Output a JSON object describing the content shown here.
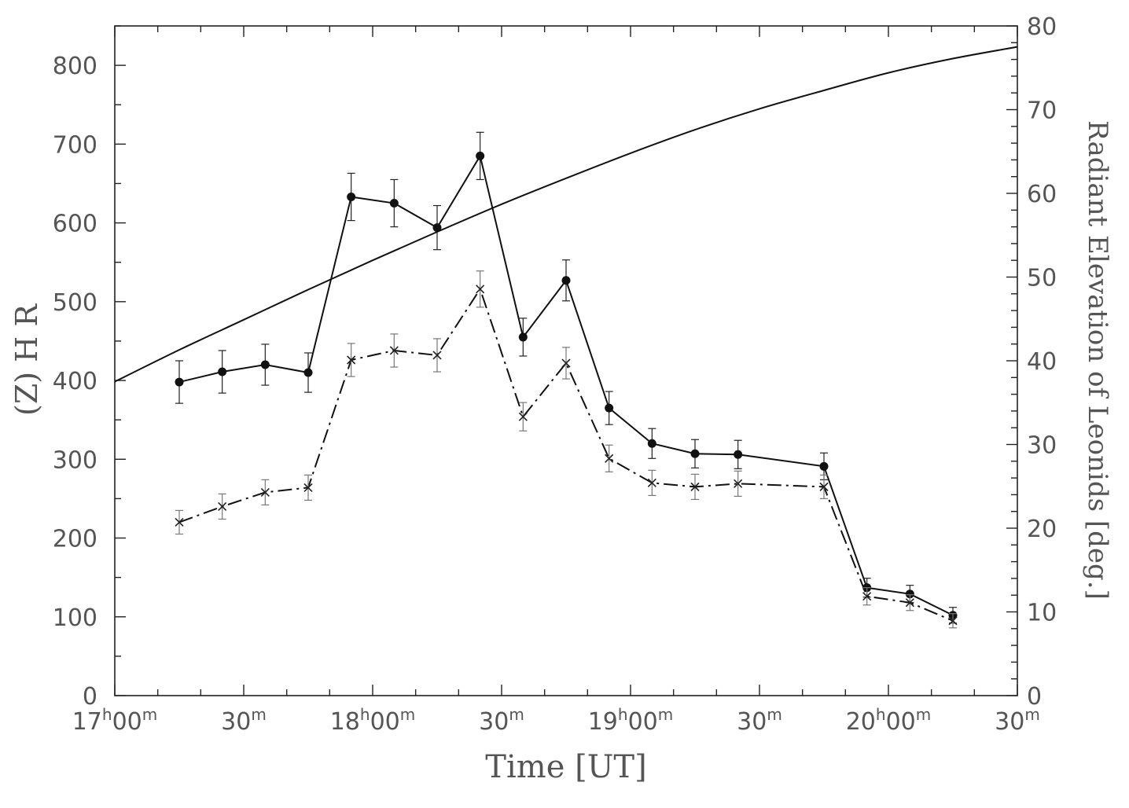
{
  "chart_data": {
    "type": "line",
    "xlabel": "Time [UT]",
    "ylabel": "(Z) H R",
    "y2label": "Radiant Elevation of Leonids [deg.]",
    "xlim_minutes_after_17h00m": [
      0,
      210
    ],
    "ylim": [
      0,
      850
    ],
    "y2lim": [
      0,
      80
    ],
    "x_ticks": [
      {
        "value": 0,
        "hour": "17",
        "min": "00"
      },
      {
        "value": 30,
        "hour": "",
        "min": "30"
      },
      {
        "value": 60,
        "hour": "18",
        "min": "00"
      },
      {
        "value": 90,
        "hour": "",
        "min": "30"
      },
      {
        "value": 120,
        "hour": "19",
        "min": "00"
      },
      {
        "value": 150,
        "hour": "",
        "min": "30"
      },
      {
        "value": 180,
        "hour": "20",
        "min": "00"
      },
      {
        "value": 210,
        "hour": "",
        "min": "30"
      }
    ],
    "y_ticks": [
      "0",
      "100",
      "200",
      "300",
      "400",
      "500",
      "600",
      "700",
      "800"
    ],
    "y2_ticks": [
      "0",
      "10",
      "20",
      "30",
      "40",
      "50",
      "60",
      "70",
      "80"
    ],
    "series": [
      {
        "marker": "filled-circle",
        "line": "solid",
        "x": [
          15,
          25,
          35,
          45,
          55,
          65,
          75,
          85,
          95,
          105,
          115,
          125,
          135,
          145,
          165,
          175,
          185,
          195
        ],
        "y": [
          398,
          411,
          420,
          410,
          633,
          625,
          594,
          685,
          455,
          527,
          365,
          320,
          307,
          306,
          291,
          137,
          129,
          102
        ],
        "err": [
          27,
          27,
          26,
          25,
          30,
          30,
          28,
          30,
          24,
          26,
          21,
          19,
          18,
          18,
          17,
          12,
          11,
          10
        ]
      },
      {
        "marker": "cross",
        "line": "dash-dot",
        "x": [
          15,
          25,
          35,
          45,
          55,
          65,
          75,
          85,
          95,
          105,
          115,
          125,
          135,
          145,
          165,
          175,
          185,
          195
        ],
        "y": [
          220,
          240,
          258,
          264,
          426,
          438,
          432,
          516,
          354,
          422,
          301,
          270,
          265,
          269,
          265,
          126,
          118,
          95
        ],
        "err": [
          15,
          16,
          16,
          16,
          21,
          21,
          21,
          23,
          18,
          20,
          17,
          16,
          16,
          16,
          15,
          11,
          10,
          9
        ]
      },
      {
        "axis": "right",
        "line": "solid",
        "x": [
          0,
          15,
          30,
          45,
          60,
          75,
          90,
          105,
          120,
          135,
          150,
          165,
          180,
          195,
          210
        ],
        "y": [
          37.5,
          41.3,
          44.9,
          48.5,
          52.0,
          55.4,
          58.7,
          61.8,
          64.8,
          67.6,
          70.1,
          72.3,
          74.4,
          76.1,
          77.5
        ]
      }
    ]
  }
}
